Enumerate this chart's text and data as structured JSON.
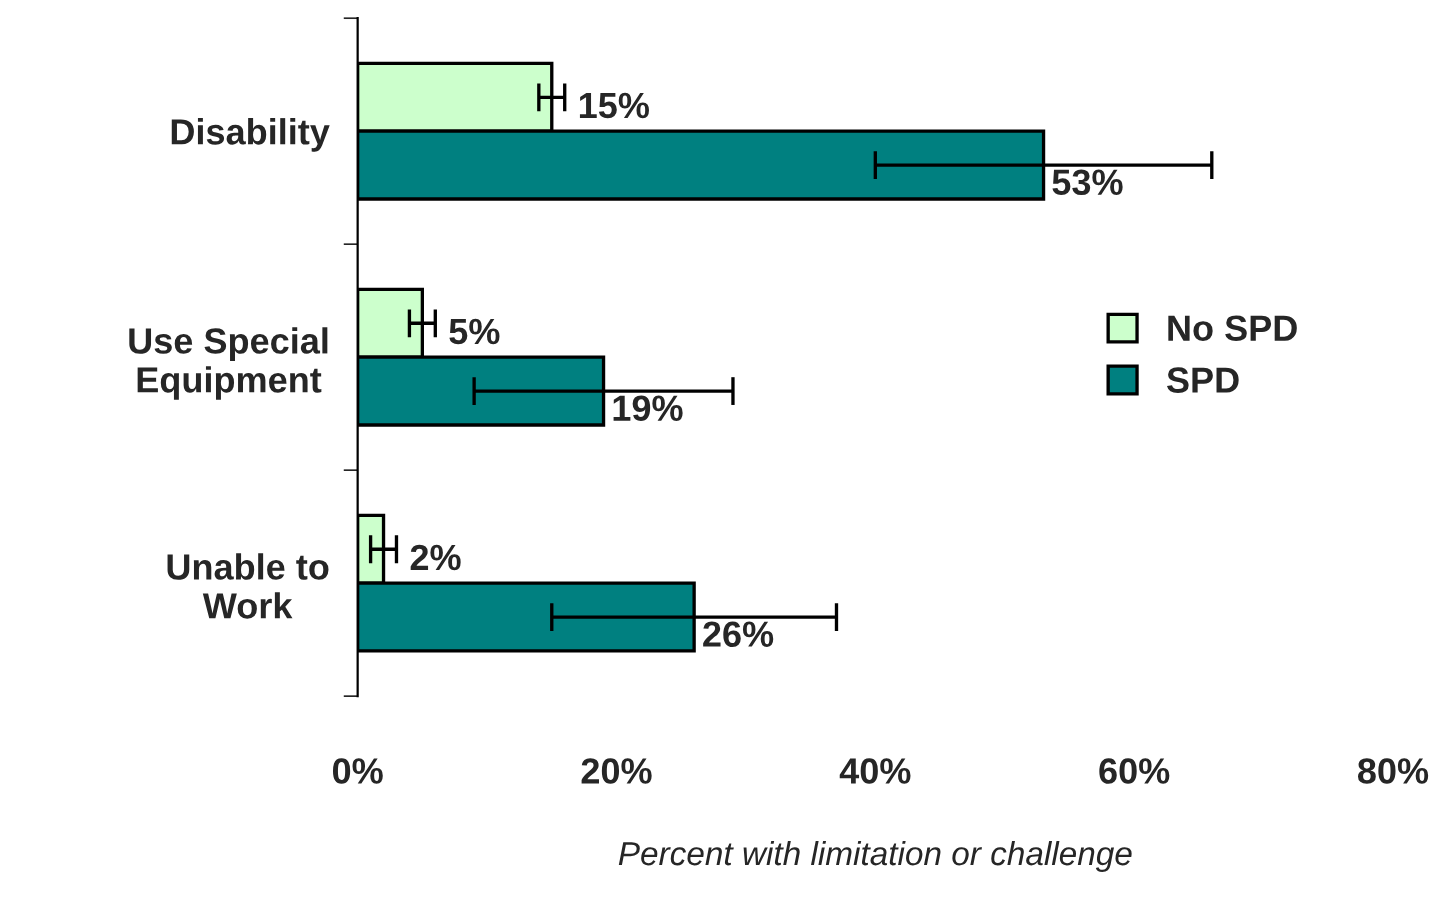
{
  "chart_data": {
    "type": "bar",
    "orientation": "horizontal",
    "xlabel": "Percent with limitation or challenge",
    "categories": [
      "Disability",
      "Use Special\nEquipment",
      "Unable to\nWork"
    ],
    "series": [
      {
        "name": "No SPD",
        "color": "#ccffcc",
        "values": [
          15,
          5,
          2
        ],
        "errors": [
          [
            14,
            16
          ],
          [
            4,
            6
          ],
          [
            1,
            3
          ]
        ],
        "value_labels": [
          "15%",
          "5%",
          "2%"
        ]
      },
      {
        "name": "SPD",
        "color": "#008080",
        "values": [
          53,
          19,
          26
        ],
        "errors": [
          [
            40,
            66
          ],
          [
            9,
            29
          ],
          [
            15,
            37
          ]
        ],
        "value_labels": [
          "53%",
          "19%",
          "26%"
        ]
      }
    ],
    "xlim": [
      0,
      80
    ],
    "xticks": [
      {
        "value": 0,
        "label": "0%"
      },
      {
        "value": 20,
        "label": "20%"
      },
      {
        "value": 40,
        "label": "40%"
      },
      {
        "value": 60,
        "label": "60%"
      },
      {
        "value": 80,
        "label": "80%"
      }
    ],
    "legend": "right",
    "grid": false
  }
}
